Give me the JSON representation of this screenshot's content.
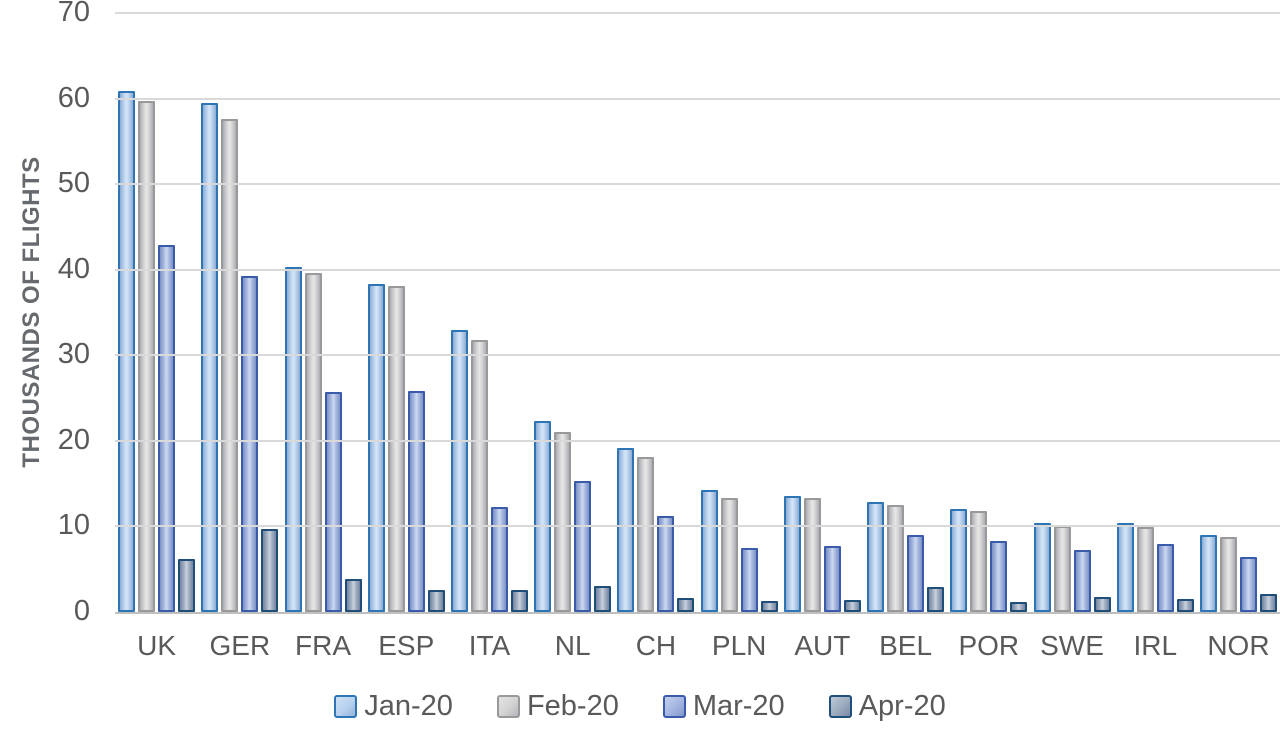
{
  "chart_data": {
    "type": "bar",
    "ylabel": "THOUSANDS OF FLIGHTS",
    "xlabel": "",
    "ylim": [
      0,
      70
    ],
    "yticks": [
      0,
      10,
      20,
      30,
      40,
      50,
      60,
      70
    ],
    "grid": true,
    "legend_position": "bottom",
    "categories": [
      "UK",
      "GER",
      "FRA",
      "ESP",
      "ITA",
      "NL",
      "CH",
      "PLN",
      "AUT",
      "BEL",
      "POR",
      "SWE",
      "IRL",
      "NOR"
    ],
    "series": [
      {
        "name": "Jan-20",
        "fill": "#A9C8EC",
        "edge": "#2E75B6",
        "values": [
          60.4,
          59.0,
          39.9,
          37.9,
          32.5,
          21.8,
          18.7,
          13.8,
          13.1,
          12.4,
          11.6,
          9.9,
          9.9,
          8.5
        ]
      },
      {
        "name": "Feb-20",
        "fill": "#CBCBCB",
        "edge": "#999999",
        "values": [
          59.2,
          57.1,
          39.1,
          37.6,
          31.3,
          20.6,
          17.7,
          12.9,
          12.9,
          12.0,
          11.3,
          9.6,
          9.5,
          8.3
        ]
      },
      {
        "name": "Mar-20",
        "fill": "#93A9DC",
        "edge": "#3A5BA9",
        "values": [
          42.4,
          38.8,
          25.2,
          25.4,
          11.8,
          14.9,
          10.7,
          7.0,
          7.2,
          8.5,
          7.8,
          6.8,
          7.5,
          6.0
        ]
      },
      {
        "name": "Apr-20",
        "fill": "#8A9BB3",
        "edge": "#1F4E79",
        "values": [
          5.7,
          9.2,
          3.4,
          2.1,
          2.1,
          2.6,
          1.2,
          0.8,
          0.9,
          2.4,
          0.7,
          1.3,
          1.0,
          1.6
        ]
      }
    ]
  },
  "colors": {
    "background": "#FFFFFF",
    "gridline": "#D9D9D9",
    "axis_line": "#BFBFBF",
    "text": "#595959"
  }
}
